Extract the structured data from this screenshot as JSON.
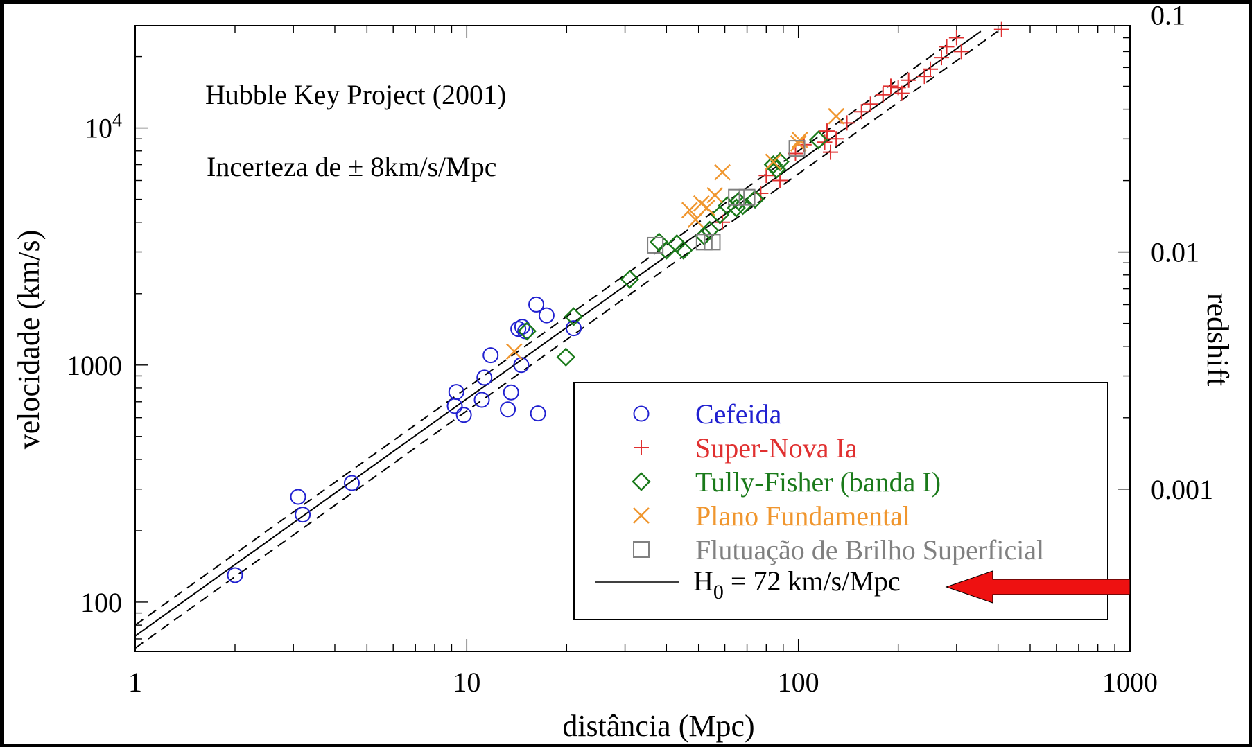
{
  "colors": {
    "cefeida": "#2020d0",
    "supernova": "#e03030",
    "tully": "#1a7a1a",
    "plano": "#f0962e",
    "flutuacao": "#808080",
    "fit": "#000000",
    "arrow": "#ee1111"
  },
  "chart_data": {
    "type": "scatter",
    "xlabel": "distância (Mpc)",
    "ylabel": "velocidade (km/s)",
    "y2label": "redshift",
    "x_scale": "log",
    "y_scale": "log",
    "xlim": [
      1,
      1000
    ],
    "ylim": [
      62,
      27000
    ],
    "x_ticks": [
      {
        "value": 1,
        "label": "1"
      },
      {
        "value": 10,
        "label": "10"
      },
      {
        "value": 100,
        "label": "100"
      },
      {
        "value": 1000,
        "label": "1000"
      }
    ],
    "y_ticks": [
      {
        "value": 100,
        "label": "100"
      },
      {
        "value": 1000,
        "label": "1000"
      }
    ],
    "y_tick_exp": {
      "value": 10000,
      "base": "10",
      "exp": "4"
    },
    "y2_ticks": [
      {
        "value": 0.001,
        "label": "0.001"
      },
      {
        "value": 0.01,
        "label": "0.01"
      },
      {
        "value": 0.1,
        "label": "0.1"
      }
    ],
    "annotations": [
      "Hubble Key Project (2001)",
      "Incerteza de ± 8km/s/Mpc"
    ],
    "fit": {
      "H0": 72,
      "band": 8,
      "label_main": "H",
      "label_sub": "0",
      "label_rest": " = 72 km/s/Mpc"
    },
    "series": [
      {
        "name": "Cefeida",
        "marker": "circle",
        "color_key": "cefeida",
        "points": [
          [
            2.0,
            130
          ],
          [
            3.1,
            278
          ],
          [
            3.2,
            234
          ],
          [
            4.5,
            318
          ],
          [
            9.2,
            672
          ],
          [
            9.3,
            770
          ],
          [
            9.8,
            616
          ],
          [
            11.1,
            713
          ],
          [
            11.3,
            885
          ],
          [
            11.8,
            1100
          ],
          [
            13.3,
            650
          ],
          [
            13.6,
            767
          ],
          [
            14.3,
            1420
          ],
          [
            14.6,
            1000
          ],
          [
            14.7,
            1450
          ],
          [
            15.0,
            1390
          ],
          [
            16.2,
            1800
          ],
          [
            16.4,
            625
          ],
          [
            17.4,
            1620
          ],
          [
            21.0,
            1430
          ]
        ]
      },
      {
        "name": "Super-Nova Ia",
        "marker": "plus",
        "color_key": "supernova",
        "points": [
          [
            59,
            4000
          ],
          [
            77,
            5300
          ],
          [
            80,
            6300
          ],
          [
            88,
            6000
          ],
          [
            98,
            7800
          ],
          [
            104,
            8500
          ],
          [
            120,
            8700
          ],
          [
            122,
            9700
          ],
          [
            125,
            7900
          ],
          [
            130,
            9000
          ],
          [
            140,
            10500
          ],
          [
            155,
            11700
          ],
          [
            165,
            12600
          ],
          [
            180,
            13800
          ],
          [
            190,
            15000
          ],
          [
            200,
            14800
          ],
          [
            205,
            14000
          ],
          [
            215,
            15900
          ],
          [
            240,
            16500
          ],
          [
            250,
            17700
          ],
          [
            270,
            19800
          ],
          [
            280,
            22000
          ],
          [
            300,
            24000
          ],
          [
            310,
            21000
          ],
          [
            410,
            26000
          ]
        ]
      },
      {
        "name": "Tully-Fisher (banda I)",
        "marker": "diamond",
        "color_key": "tully",
        "points": [
          [
            15.2,
            1390
          ],
          [
            19.9,
            1080
          ],
          [
            21.0,
            1600
          ],
          [
            31,
            2300
          ],
          [
            38,
            3300
          ],
          [
            40,
            3050
          ],
          [
            43,
            3250
          ],
          [
            45,
            3050
          ],
          [
            52,
            3500
          ],
          [
            54,
            3700
          ],
          [
            58,
            4300
          ],
          [
            61,
            4700
          ],
          [
            65,
            4600
          ],
          [
            66,
            4900
          ],
          [
            68,
            4700
          ],
          [
            74,
            5000
          ],
          [
            84,
            7000
          ],
          [
            86,
            6700
          ],
          [
            88,
            7200
          ],
          [
            115,
            8900
          ]
        ]
      },
      {
        "name": "Plano Fundamental",
        "marker": "x",
        "color_key": "plano",
        "points": [
          [
            13.9,
            1140
          ],
          [
            47,
            4500
          ],
          [
            49,
            4100
          ],
          [
            51,
            4800
          ],
          [
            53,
            4600
          ],
          [
            56,
            5200
          ],
          [
            59,
            6500
          ],
          [
            84,
            7200
          ],
          [
            100,
            8600
          ],
          [
            101,
            8900
          ],
          [
            130,
            11200
          ]
        ]
      },
      {
        "name": "Flutuação de Brilho Superficial",
        "marker": "square",
        "color_key": "flutuacao",
        "points": [
          [
            37,
            3200
          ],
          [
            52,
            3300
          ],
          [
            55,
            3300
          ],
          [
            65,
            5100
          ],
          [
            70,
            5100
          ],
          [
            99,
            8200
          ]
        ]
      }
    ],
    "legend": {
      "position": "bottom-right",
      "entries": [
        {
          "label": "Cefeida",
          "marker": "circle",
          "color_key": "cefeida"
        },
        {
          "label": "Super-Nova Ia",
          "marker": "plus",
          "color_key": "supernova"
        },
        {
          "label": "Tully-Fisher (banda I)",
          "marker": "diamond",
          "color_key": "tully"
        },
        {
          "label": "Plano Fundamental",
          "marker": "x",
          "color_key": "plano"
        },
        {
          "label": "Flutuação de Brilho Superficial",
          "marker": "square",
          "color_key": "flutuacao"
        }
      ]
    }
  }
}
